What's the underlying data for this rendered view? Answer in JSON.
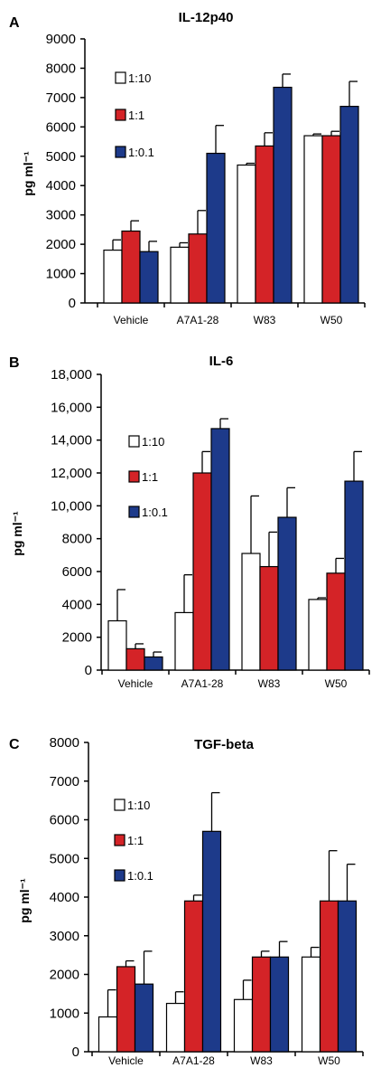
{
  "figure": {
    "panels": [
      {
        "letter": "A",
        "title": "IL-12p40"
      },
      {
        "letter": "B",
        "title": "IL-6"
      },
      {
        "letter": "C",
        "title": "TGF-beta"
      }
    ]
  },
  "colors": {
    "white_series": "#ffffff",
    "red_series": "#d42327",
    "blue_series": "#1d3a8a",
    "axis": "#000000"
  },
  "chart_data": [
    {
      "type": "bar",
      "title": "IL-12p40",
      "ylabel": "pg ml⁻¹",
      "xlabel": "",
      "categories": [
        "Vehicle",
        "A7A1-28",
        "W83",
        "W50"
      ],
      "ylim": [
        0,
        9000
      ],
      "yticks": [
        0,
        1000,
        2000,
        3000,
        4000,
        5000,
        6000,
        7000,
        8000,
        9000
      ],
      "ytick_labels": [
        "0",
        "1000",
        "2000",
        "3000",
        "4000",
        "5000",
        "6000",
        "7000",
        "8000",
        "9000"
      ],
      "legend_position": "top-left",
      "series": [
        {
          "name": "1:10",
          "values": [
            1800,
            1900,
            4700,
            5700
          ],
          "errors": [
            350,
            150,
            60,
            60
          ]
        },
        {
          "name": "1:1",
          "values": [
            2450,
            2350,
            5350,
            5700
          ],
          "errors": [
            350,
            800,
            450,
            150
          ]
        },
        {
          "name": "1:0.1",
          "values": [
            1750,
            5100,
            7350,
            6700
          ],
          "errors": [
            350,
            950,
            450,
            850
          ]
        }
      ]
    },
    {
      "type": "bar",
      "title": "IL-6",
      "ylabel": "pg ml⁻¹",
      "xlabel": "",
      "categories": [
        "Vehicle",
        "A7A1-28",
        "W83",
        "W50"
      ],
      "ylim": [
        0,
        18000
      ],
      "yticks": [
        0,
        2000,
        4000,
        6000,
        8000,
        10000,
        12000,
        14000,
        16000,
        18000
      ],
      "ytick_labels": [
        "0",
        "2000",
        "4000",
        "6000",
        "8000",
        "10,000",
        "12,000",
        "14,000",
        "16,000",
        "18,000"
      ],
      "legend_position": "top-left",
      "series": [
        {
          "name": "1:10",
          "values": [
            3000,
            3500,
            7100,
            4300
          ],
          "errors": [
            1900,
            2300,
            3500,
            100
          ]
        },
        {
          "name": "1:1",
          "values": [
            1300,
            12000,
            6300,
            5900
          ],
          "errors": [
            300,
            1300,
            2100,
            900
          ]
        },
        {
          "name": "1:0.1",
          "values": [
            800,
            14700,
            9300,
            11500
          ],
          "errors": [
            300,
            600,
            1800,
            1800
          ]
        }
      ]
    },
    {
      "type": "bar",
      "title": "TGF-beta",
      "ylabel": "pg ml⁻¹",
      "xlabel": "",
      "categories": [
        "Vehicle",
        "A7A1-28",
        "W83",
        "W50"
      ],
      "ylim": [
        0,
        8000
      ],
      "yticks": [
        0,
        1000,
        2000,
        3000,
        4000,
        5000,
        6000,
        7000,
        8000
      ],
      "ytick_labels": [
        "0",
        "1000",
        "2000",
        "3000",
        "4000",
        "5000",
        "6000",
        "7000",
        "8000"
      ],
      "legend_position": "top-left",
      "series": [
        {
          "name": "1:10",
          "values": [
            900,
            1250,
            1350,
            2450
          ],
          "errors": [
            700,
            300,
            500,
            250
          ]
        },
        {
          "name": "1:1",
          "values": [
            2200,
            3900,
            2450,
            3900
          ],
          "errors": [
            150,
            150,
            150,
            1300
          ]
        },
        {
          "name": "1:0.1",
          "values": [
            1750,
            5700,
            2450,
            3900
          ],
          "errors": [
            850,
            1000,
            400,
            950
          ]
        }
      ]
    }
  ]
}
